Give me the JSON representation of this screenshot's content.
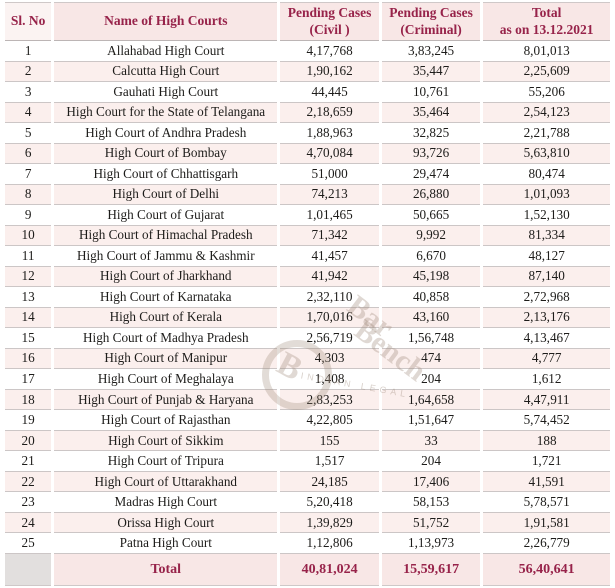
{
  "colors": {
    "maroon_accent": "#97234a",
    "header_pink": "#f8e7e6",
    "row_pink": "#fbefed",
    "row_white": "#ffffff",
    "grid_gray": "#ccc6c6",
    "total_blank_gray": "#e2dfde",
    "body_text": "#1d1c1a"
  },
  "watermark": {
    "monogram": "B",
    "text_line1": "Bar",
    "text_line2": "Bench",
    "subtext": "INDIAN LEGAL"
  },
  "chart_data": {
    "type": "table",
    "title": "",
    "columns": [
      "Sl. No",
      "Name of High Courts",
      "Pending Cases (Civil )",
      "Pending Cases (Criminal)",
      "Total as on 13.12.2021"
    ],
    "header_cells": [
      {
        "line1": "Sl. No",
        "line2": ""
      },
      {
        "line1": "Name of High Courts",
        "line2": ""
      },
      {
        "line1": "Pending Cases",
        "line2": "(Civil )"
      },
      {
        "line1": "Pending Cases",
        "line2": "(Criminal)"
      },
      {
        "line1": "Total",
        "line2": "as on 13.12.2021"
      }
    ],
    "rows": [
      {
        "sl": "1",
        "name": "Allahabad High Court",
        "civil": "4,17,768",
        "criminal": "3,83,245",
        "total": "8,01,013"
      },
      {
        "sl": "2",
        "name": "Calcutta High Court",
        "civil": "1,90,162",
        "criminal": "35,447",
        "total": "2,25,609"
      },
      {
        "sl": "3",
        "name": "Gauhati High Court",
        "civil": "44,445",
        "criminal": "10,761",
        "total": "55,206"
      },
      {
        "sl": "4",
        "name": "High Court for the State of Telangana",
        "civil": "2,18,659",
        "criminal": "35,464",
        "total": "2,54,123"
      },
      {
        "sl": "5",
        "name": "High Court of Andhra Pradesh",
        "civil": "1,88,963",
        "criminal": "32,825",
        "total": "2,21,788"
      },
      {
        "sl": "6",
        "name": "High Court of Bombay",
        "civil": "4,70,084",
        "criminal": "93,726",
        "total": "5,63,810"
      },
      {
        "sl": "7",
        "name": "High Court of Chhattisgarh",
        "civil": "51,000",
        "criminal": "29,474",
        "total": "80,474"
      },
      {
        "sl": "8",
        "name": "High Court of Delhi",
        "civil": "74,213",
        "criminal": "26,880",
        "total": "1,01,093"
      },
      {
        "sl": "9",
        "name": "High Court of Gujarat",
        "civil": "1,01,465",
        "criminal": "50,665",
        "total": "1,52,130"
      },
      {
        "sl": "10",
        "name": "High Court of Himachal Pradesh",
        "civil": "71,342",
        "criminal": "9,992",
        "total": "81,334"
      },
      {
        "sl": "11",
        "name": "High Court of Jammu & Kashmir",
        "civil": "41,457",
        "criminal": "6,670",
        "total": "48,127"
      },
      {
        "sl": "12",
        "name": "High Court of Jharkhand",
        "civil": "41,942",
        "criminal": "45,198",
        "total": "87,140"
      },
      {
        "sl": "13",
        "name": "High Court of Karnataka",
        "civil": "2,32,110",
        "criminal": "40,858",
        "total": "2,72,968"
      },
      {
        "sl": "14",
        "name": "High Court of Kerala",
        "civil": "1,70,016",
        "criminal": "43,160",
        "total": "2,13,176"
      },
      {
        "sl": "15",
        "name": "High Court of Madhya Pradesh",
        "civil": "2,56,719",
        "criminal": "1,56,748",
        "total": "4,13,467"
      },
      {
        "sl": "16",
        "name": "High Court of Manipur",
        "civil": "4,303",
        "criminal": "474",
        "total": "4,777"
      },
      {
        "sl": "17",
        "name": "High Court of Meghalaya",
        "civil": "1,408",
        "criminal": "204",
        "total": "1,612"
      },
      {
        "sl": "18",
        "name": "High Court of Punjab & Haryana",
        "civil": "2,83,253",
        "criminal": "1,64,658",
        "total": "4,47,911"
      },
      {
        "sl": "19",
        "name": "High Court of Rajasthan",
        "civil": "4,22,805",
        "criminal": "1,51,647",
        "total": "5,74,452"
      },
      {
        "sl": "20",
        "name": "High Court of Sikkim",
        "civil": "155",
        "criminal": "33",
        "total": "188"
      },
      {
        "sl": "21",
        "name": "High Court of Tripura",
        "civil": "1,517",
        "criminal": "204",
        "total": "1,721"
      },
      {
        "sl": "22",
        "name": "High Court of Uttarakhand",
        "civil": "24,185",
        "criminal": "17,406",
        "total": "41,591"
      },
      {
        "sl": "23",
        "name": "Madras High Court",
        "civil": "5,20,418",
        "criminal": "58,153",
        "total": "5,78,571"
      },
      {
        "sl": "24",
        "name": "Orissa High Court",
        "civil": "1,39,829",
        "criminal": "51,752",
        "total": "1,91,581"
      },
      {
        "sl": "25",
        "name": "Patna High Court",
        "civil": "1,12,806",
        "criminal": "1,13,973",
        "total": "2,26,779"
      }
    ],
    "total_row": {
      "label": "Total",
      "civil": "40,81,024",
      "criminal": "15,59,617",
      "total": "56,40,641"
    }
  }
}
